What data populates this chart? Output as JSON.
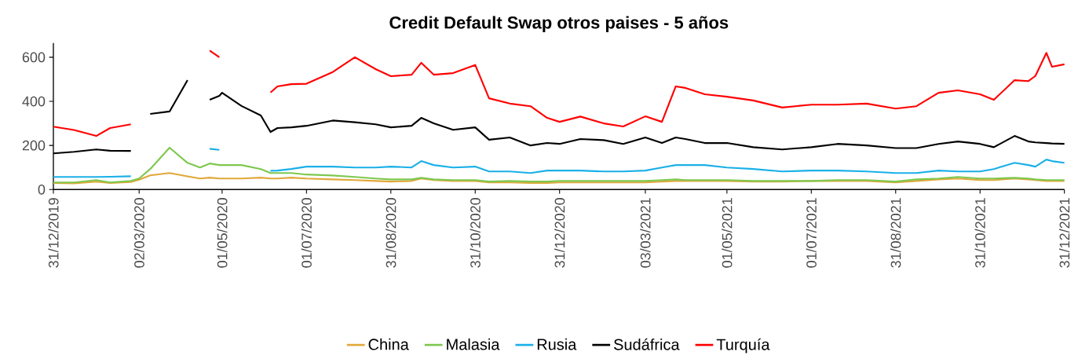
{
  "chart_data": {
    "type": "line",
    "title": "Credit Default Swap otros paises - 5 años",
    "x": [
      "2019-12-31",
      "2020-01-15",
      "2020-01-31",
      "2020-02-10",
      "2020-02-25",
      "2020-03-02",
      "2020-03-10",
      "2020-03-24",
      "2020-04-06",
      "2020-04-15",
      "2020-04-22",
      "2020-04-29",
      "2020-05-01",
      "2020-05-15",
      "2020-05-29",
      "2020-06-05",
      "2020-06-10",
      "2020-06-20",
      "2020-07-01",
      "2020-07-20",
      "2020-08-05",
      "2020-08-20",
      "2020-08-31",
      "2020-09-15",
      "2020-09-22",
      "2020-10-01",
      "2020-10-15",
      "2020-10-31",
      "2020-11-10",
      "2020-11-25",
      "2020-12-10",
      "2020-12-22",
      "2020-12-31",
      "2021-01-15",
      "2021-02-01",
      "2021-02-15",
      "2021-03-03",
      "2021-03-15",
      "2021-03-25",
      "2021-04-01",
      "2021-04-15",
      "2021-05-01",
      "2021-05-20",
      "2021-06-10",
      "2021-07-01",
      "2021-07-20",
      "2021-08-10",
      "2021-08-31",
      "2021-09-15",
      "2021-10-01",
      "2021-10-15",
      "2021-10-31",
      "2021-11-10",
      "2021-11-25",
      "2021-12-05",
      "2021-12-10",
      "2021-12-18",
      "2021-12-22",
      "2021-12-31"
    ],
    "series": [
      {
        "name": "China",
        "color": "#e1a83a",
        "values": [
          30,
          28,
          36,
          30,
          34,
          45,
          64,
          75,
          60,
          50,
          54,
          50,
          50,
          50,
          54,
          50,
          50,
          54,
          50,
          46,
          43,
          39,
          36,
          39,
          50,
          43,
          39,
          39,
          32,
          32,
          30,
          30,
          32,
          32,
          32,
          32,
          32,
          36,
          39,
          39,
          39,
          39,
          36,
          36,
          39,
          39,
          39,
          32,
          39,
          46,
          50,
          43,
          43,
          50,
          46,
          43,
          39,
          39,
          39
        ]
      },
      {
        "name": "Malasia",
        "color": "#7ec850",
        "values": [
          32,
          32,
          43,
          32,
          39,
          50,
          93,
          190,
          121,
          100,
          118,
          111,
          111,
          111,
          93,
          75,
          75,
          75,
          68,
          64,
          57,
          50,
          46,
          46,
          53,
          46,
          43,
          43,
          36,
          39,
          36,
          36,
          39,
          39,
          39,
          39,
          39,
          43,
          46,
          43,
          43,
          43,
          39,
          39,
          39,
          43,
          43,
          36,
          46,
          50,
          57,
          50,
          50,
          53,
          50,
          46,
          43,
          43,
          43
        ]
      },
      {
        "name": "Rusia",
        "color": "#1ab0e8",
        "values": [
          57,
          57,
          57,
          58,
          60,
          null,
          null,
          null,
          null,
          null,
          185,
          180,
          null,
          null,
          null,
          85,
          86,
          93,
          104,
          104,
          100,
          100,
          104,
          100,
          129,
          111,
          100,
          104,
          82,
          82,
          75,
          86,
          86,
          86,
          82,
          82,
          86,
          100,
          111,
          111,
          111,
          100,
          93,
          82,
          86,
          86,
          82,
          75,
          75,
          86,
          82,
          82,
          93,
          121,
          111,
          104,
          136,
          129,
          121
        ]
      },
      {
        "name": "Sudáfrica",
        "color": "#000000",
        "values": [
          164,
          171,
          182,
          176,
          175,
          null,
          343,
          354,
          496,
          null,
          407,
          425,
          439,
          379,
          336,
          261,
          279,
          282,
          289,
          313,
          305,
          296,
          282,
          289,
          325,
          300,
          271,
          282,
          226,
          236,
          200,
          211,
          207,
          229,
          224,
          207,
          236,
          211,
          236,
          229,
          211,
          211,
          192,
          182,
          192,
          207,
          200,
          188,
          188,
          207,
          218,
          207,
          192,
          243,
          218,
          214,
          211,
          209,
          207
        ]
      },
      {
        "name": "Turquía",
        "color": "#ff0000",
        "values": [
          285,
          270,
          243,
          279,
          296,
          null,
          null,
          null,
          null,
          null,
          630,
          600,
          null,
          null,
          null,
          440,
          468,
          478,
          480,
          533,
          600,
          546,
          514,
          521,
          575,
          521,
          528,
          565,
          414,
          390,
          378,
          325,
          307,
          331,
          300,
          286,
          332,
          307,
          468,
          461,
          432,
          421,
          404,
          372,
          385,
          385,
          390,
          367,
          378,
          439,
          450,
          432,
          407,
          496,
          492,
          515,
          620,
          557,
          568
        ]
      }
    ],
    "xlim": [
      "2019-12-31",
      "2021-12-31"
    ],
    "xticks": [
      {
        "value": "2019-12-31",
        "label": "31/12/2019"
      },
      {
        "value": "2020-03-02",
        "label": "02/03/2020"
      },
      {
        "value": "2020-05-01",
        "label": "01/05/2020"
      },
      {
        "value": "2020-07-01",
        "label": "01/07/2020"
      },
      {
        "value": "2020-08-31",
        "label": "31/08/2020"
      },
      {
        "value": "2020-10-31",
        "label": "31/10/2020"
      },
      {
        "value": "2020-12-31",
        "label": "31/12/2020"
      },
      {
        "value": "2021-03-03",
        "label": "03/03/2021"
      },
      {
        "value": "2021-05-01",
        "label": "01/05/2021"
      },
      {
        "value": "2021-07-01",
        "label": "01/07/2021"
      },
      {
        "value": "2021-08-31",
        "label": "31/08/2021"
      },
      {
        "value": "2021-10-31",
        "label": "31/10/2021"
      },
      {
        "value": "2021-12-31",
        "label": "31/12/2021"
      }
    ],
    "ylim": [
      0,
      665
    ],
    "yticks": [
      0,
      200,
      400,
      600
    ],
    "legend": "bottom",
    "marker": "none",
    "line_style": "solid"
  }
}
